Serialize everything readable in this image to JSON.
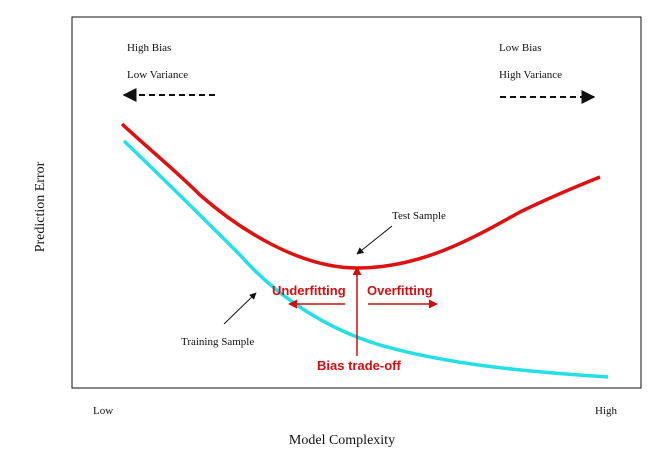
{
  "header": {
    "left": {
      "line1": "High Bias",
      "line2": "Low Variance"
    },
    "right": {
      "line1": "Low Bias",
      "line2": "High Variance"
    }
  },
  "axes": {
    "y_label": "Prediction Error",
    "x_label": "Model Complexity",
    "x_low": "Low",
    "x_high": "High"
  },
  "curves": {
    "test": "Test Sample",
    "training": "Training Sample"
  },
  "annotations": {
    "underfitting": "Underfitting",
    "overfitting": "Overfitting",
    "tradeoff": "Bias trade-off"
  }
}
